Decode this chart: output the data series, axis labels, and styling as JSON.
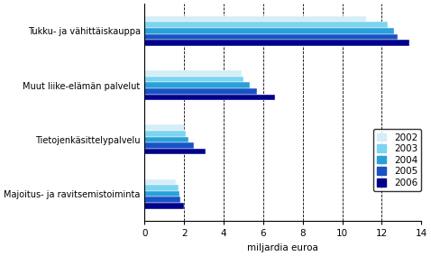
{
  "categories": [
    "Majoitus- ja ravitsemistoiminta",
    "Tietojenkäsittelypalvelu",
    "Muut liike-elämän palvelut",
    "Tukku- ja vähittäiskauppa"
  ],
  "years": [
    "2002",
    "2003",
    "2004",
    "2005",
    "2006"
  ],
  "colors": [
    "#d4eef8",
    "#7dd4f0",
    "#29a0d8",
    "#1a52c4",
    "#00008b"
  ],
  "values": {
    "Majoitus- ja ravitsemistoiminta": [
      1.6,
      1.7,
      1.75,
      1.8,
      2.0
    ],
    "Tietojenkäsittelypalvelu": [
      2.0,
      2.1,
      2.2,
      2.5,
      3.1
    ],
    "Muut liike-elämän palvelut": [
      4.9,
      5.0,
      5.3,
      5.7,
      6.6
    ],
    "Tukku- ja vähittäiskauppa": [
      11.2,
      12.3,
      12.6,
      12.8,
      13.4
    ]
  },
  "xlabel": "miljardia euroa",
  "xlim": [
    0,
    14
  ],
  "xticks": [
    0,
    2,
    4,
    6,
    8,
    10,
    12,
    14
  ],
  "background_color": "#ffffff"
}
